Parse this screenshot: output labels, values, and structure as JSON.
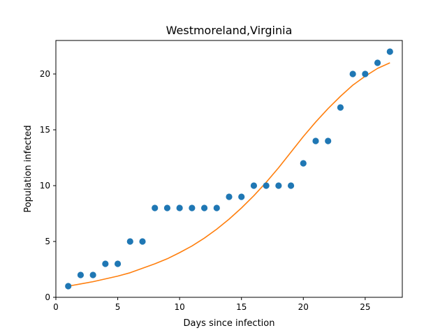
{
  "chart_data": {
    "type": "scatter",
    "title": "Westmoreland,Virginia",
    "xlabel": "Days since infection",
    "ylabel": "Population infected",
    "xlim": [
      0,
      28
    ],
    "ylim": [
      0,
      23
    ],
    "xticks": [
      0,
      5,
      10,
      15,
      20,
      25
    ],
    "yticks": [
      0,
      5,
      10,
      15,
      20
    ],
    "grid": false,
    "series": [
      {
        "kind": "scatter",
        "color": "#1f77b4",
        "points": [
          [
            1,
            1
          ],
          [
            2,
            2
          ],
          [
            3,
            2
          ],
          [
            4,
            3
          ],
          [
            5,
            3
          ],
          [
            6,
            5
          ],
          [
            7,
            5
          ],
          [
            8,
            8
          ],
          [
            9,
            8
          ],
          [
            10,
            8
          ],
          [
            11,
            8
          ],
          [
            12,
            8
          ],
          [
            13,
            8
          ],
          [
            14,
            9
          ],
          [
            15,
            9
          ],
          [
            16,
            10
          ],
          [
            17,
            10
          ],
          [
            18,
            10
          ],
          [
            19,
            10
          ],
          [
            20,
            12
          ],
          [
            21,
            14
          ],
          [
            22,
            14
          ],
          [
            23,
            17
          ],
          [
            24,
            20
          ],
          [
            25,
            20
          ],
          [
            26,
            21
          ],
          [
            27,
            22
          ]
        ]
      },
      {
        "kind": "line",
        "color": "#ff7f0e",
        "points": [
          [
            1,
            1.0
          ],
          [
            2,
            1.2
          ],
          [
            3,
            1.4
          ],
          [
            4,
            1.65
          ],
          [
            5,
            1.9
          ],
          [
            6,
            2.2
          ],
          [
            7,
            2.6
          ],
          [
            8,
            3.0
          ],
          [
            9,
            3.45
          ],
          [
            10,
            4.0
          ],
          [
            11,
            4.6
          ],
          [
            12,
            5.3
          ],
          [
            13,
            6.1
          ],
          [
            14,
            7.0
          ],
          [
            15,
            8.0
          ],
          [
            16,
            9.1
          ],
          [
            17,
            10.3
          ],
          [
            18,
            11.6
          ],
          [
            19,
            13.0
          ],
          [
            20,
            14.4
          ],
          [
            21,
            15.7
          ],
          [
            22,
            16.9
          ],
          [
            23,
            18.0
          ],
          [
            24,
            19.0
          ],
          [
            25,
            19.8
          ],
          [
            26,
            20.5
          ],
          [
            27,
            21.0
          ]
        ]
      }
    ]
  }
}
